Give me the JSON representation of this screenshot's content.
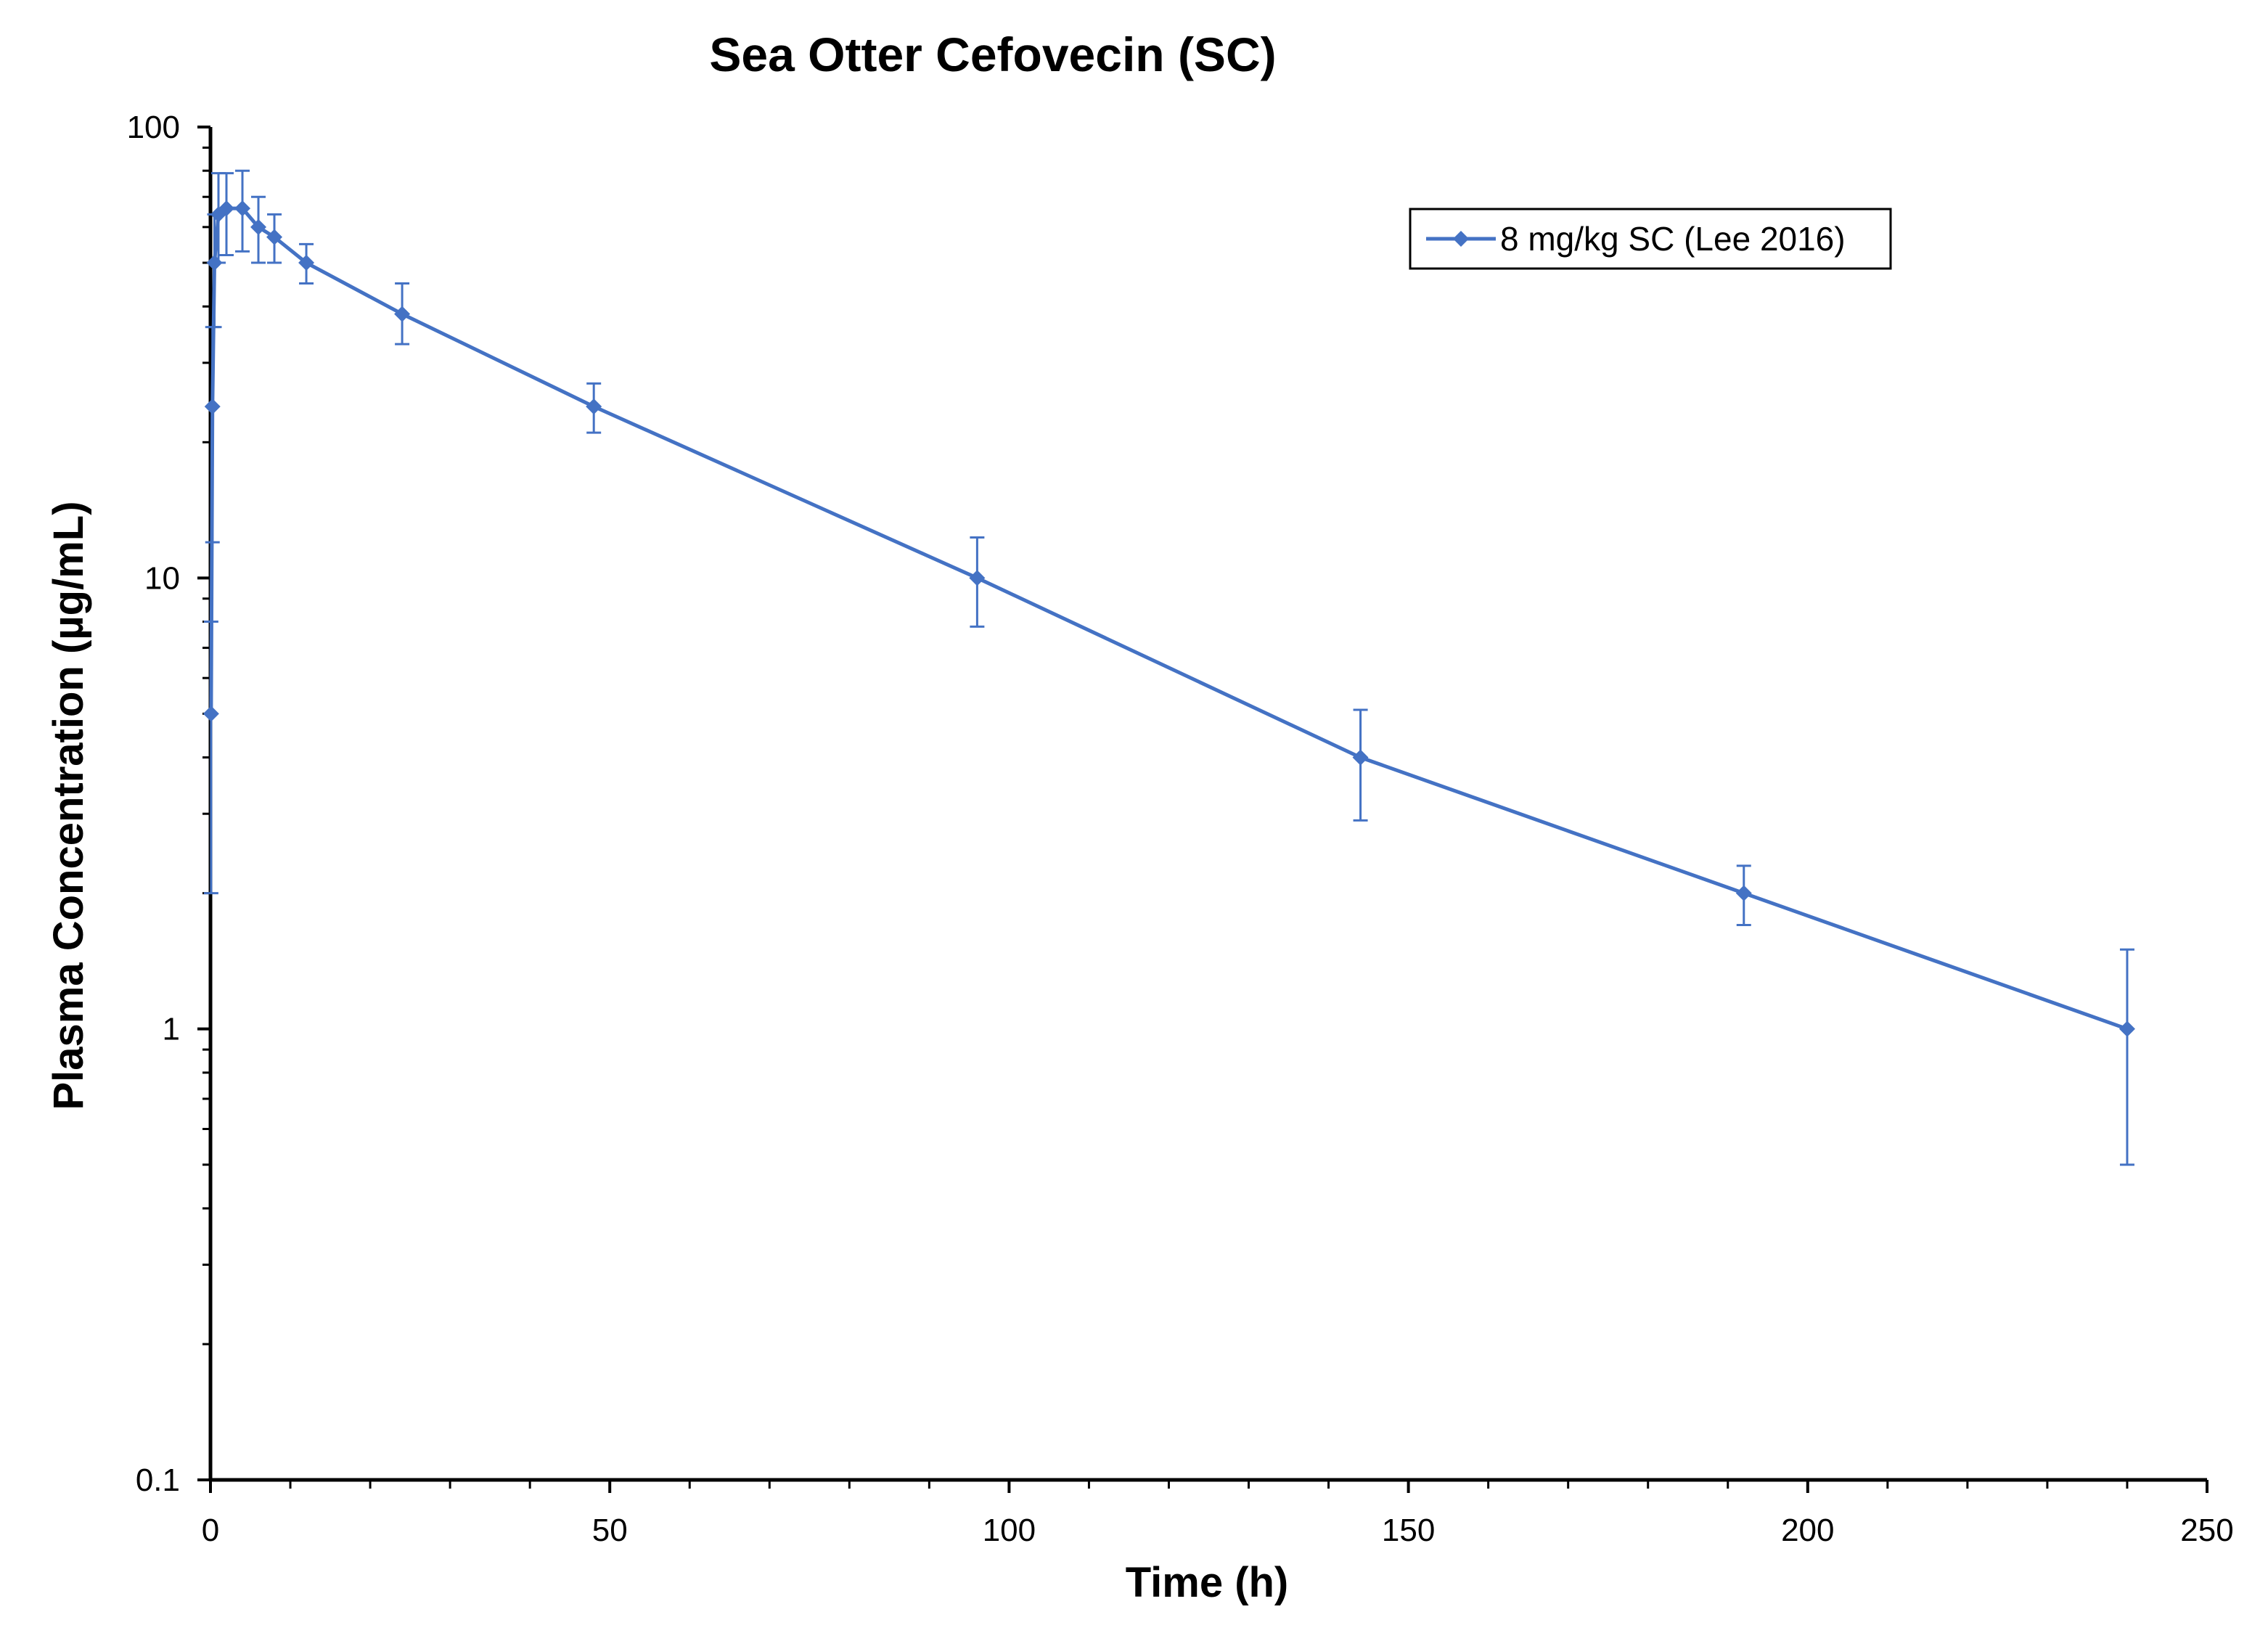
{
  "chart_data": {
    "type": "line",
    "title": "Sea Otter Cefovecin (SC)",
    "xlabel": "Time (h)",
    "ylabel": "Plasma Concentration (µg/mL)",
    "xlim": [
      0,
      250
    ],
    "ylim": [
      0.1,
      100
    ],
    "yscale": "log",
    "x_ticks": [
      "0",
      "50",
      "100",
      "150",
      "200",
      "250"
    ],
    "y_ticks": [
      "0.1",
      "1",
      "10",
      "100"
    ],
    "legend_position": "top-right",
    "grid": false,
    "series": [
      {
        "name": "8 mg/kg SC (Lee 2016)",
        "color": "#4472C4",
        "marker": "diamond",
        "x": [
          0.08,
          0.25,
          0.5,
          1,
          2,
          4,
          6,
          8,
          12,
          24,
          48,
          96,
          144,
          192,
          240
        ],
        "y": [
          5,
          24,
          50,
          64,
          66,
          66,
          60,
          57,
          50,
          38.5,
          24,
          10,
          4,
          2,
          1
        ],
        "y_lower": [
          2,
          12,
          36,
          50,
          52,
          53,
          50,
          50,
          45,
          33,
          21,
          7.8,
          2.9,
          1.7,
          0.5
        ],
        "y_upper": [
          8,
          36,
          64,
          79,
          79,
          80,
          70,
          64,
          55,
          45,
          27,
          12.3,
          5.1,
          2.3,
          1.5
        ]
      }
    ]
  }
}
